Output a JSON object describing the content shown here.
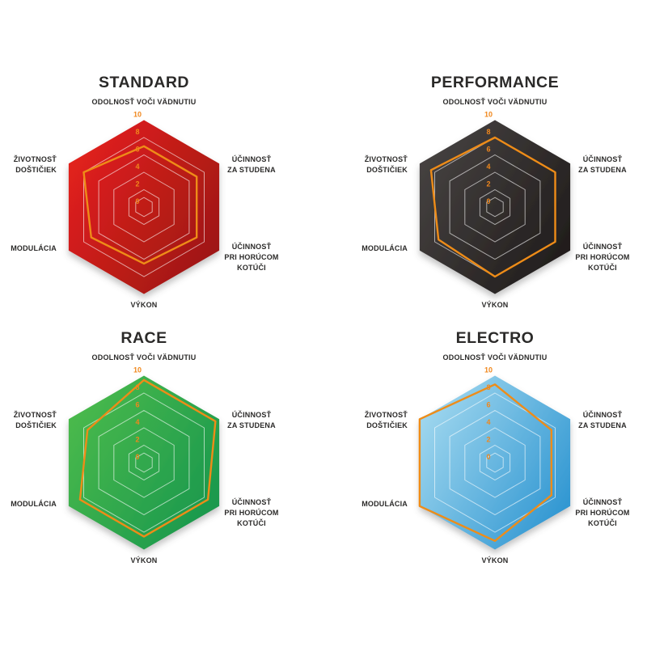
{
  "page": {
    "background": "#ffffff"
  },
  "axes": {
    "top": {
      "lines": [
        "ODOLNOSŤ VOČI VÄDNUTIU"
      ]
    },
    "upper_right": {
      "lines": [
        "ÚČINNOSŤ",
        "ZA STUDENA"
      ]
    },
    "lower_right": {
      "lines": [
        "ÚČINNOSŤ",
        "PRI HORÚCOM",
        "KOTÚČI"
      ]
    },
    "bottom": {
      "lines": [
        "VÝKON"
      ]
    },
    "lower_left": {
      "lines": [
        "MODULÁCIA"
      ]
    },
    "upper_left": {
      "lines": [
        "ŽIVOTNOSŤ",
        "DOŠTIČIEK"
      ]
    }
  },
  "ticks": [
    10,
    8,
    6,
    4,
    2,
    0
  ],
  "style": {
    "tick_color": "#f0871c",
    "line_color": "#ee8c18",
    "grid_color": "rgba(255,255,255,0.6)",
    "title_color": "#2b2a29"
  },
  "chart_data": [
    {
      "type": "radar",
      "title": "STANDARD",
      "categories": [
        "ODOLNOSŤ VOČI VÄDNUTIU",
        "ÚČINNOSŤ ZA STUDENA",
        "ÚČINNOSŤ PRI HORÚCOM KOTÚČI",
        "VÝKON",
        "MODULÁCIA",
        "ŽIVOTNOSŤ DOŠTIČIEK"
      ],
      "values": [
        7,
        7,
        7,
        6.5,
        7,
        8
      ],
      "scale": {
        "min": 0,
        "max": 10,
        "rings": [
          2,
          4,
          6,
          8,
          10
        ]
      },
      "gradient": [
        "#e6211e",
        "#9a1713"
      ]
    },
    {
      "type": "radar",
      "title": "PERFORMANCE",
      "categories": [
        "ODOLNOSŤ VOČI VÄDNUTIU",
        "ÚČINNOSŤ ZA STUDENA",
        "ÚČINNOSŤ PRI HORÚCOM KOTÚČI",
        "VÝKON",
        "MODULÁCIA",
        "ŽIVOTNOSŤ DOŠTIČIEK"
      ],
      "values": [
        8,
        8,
        8,
        8,
        7.5,
        8.5
      ],
      "scale": {
        "min": 0,
        "max": 10,
        "rings": [
          2,
          4,
          6,
          8,
          10
        ]
      },
      "gradient": [
        "#474342",
        "#1f1b1a"
      ]
    },
    {
      "type": "radar",
      "title": "RACE",
      "categories": [
        "ODOLNOSŤ VOČI VÄDNUTIU",
        "ÚČINNOSŤ ZA STUDENA",
        "ÚČINNOSŤ PRI HORÚCOM KOTÚČI",
        "VÝKON",
        "MODULÁCIA",
        "ŽIVOTNOSŤ DOŠTIČIEK"
      ],
      "values": [
        9.5,
        9.5,
        8.5,
        8.5,
        8.5,
        7.5
      ],
      "scale": {
        "min": 0,
        "max": 10,
        "rings": [
          2,
          4,
          6,
          8,
          10
        ]
      },
      "gradient": [
        "#4cbb4c",
        "#17964e"
      ]
    },
    {
      "type": "radar",
      "title": "ELECTRO",
      "categories": [
        "ODOLNOSŤ VOČI VÄDNUTIU",
        "ÚČINNOSŤ ZA STUDENA",
        "ÚČINNOSŤ PRI HORÚCOM KOTÚČI",
        "VÝKON",
        "MODULÁCIA",
        "ŽIVOTNOSŤ DOŠTIČIEK"
      ],
      "values": [
        9,
        7.5,
        7.5,
        9,
        10,
        10
      ],
      "scale": {
        "min": 0,
        "max": 10,
        "rings": [
          2,
          4,
          6,
          8,
          10
        ]
      },
      "gradient": [
        "#a5daf0",
        "#2a93d0"
      ]
    }
  ]
}
